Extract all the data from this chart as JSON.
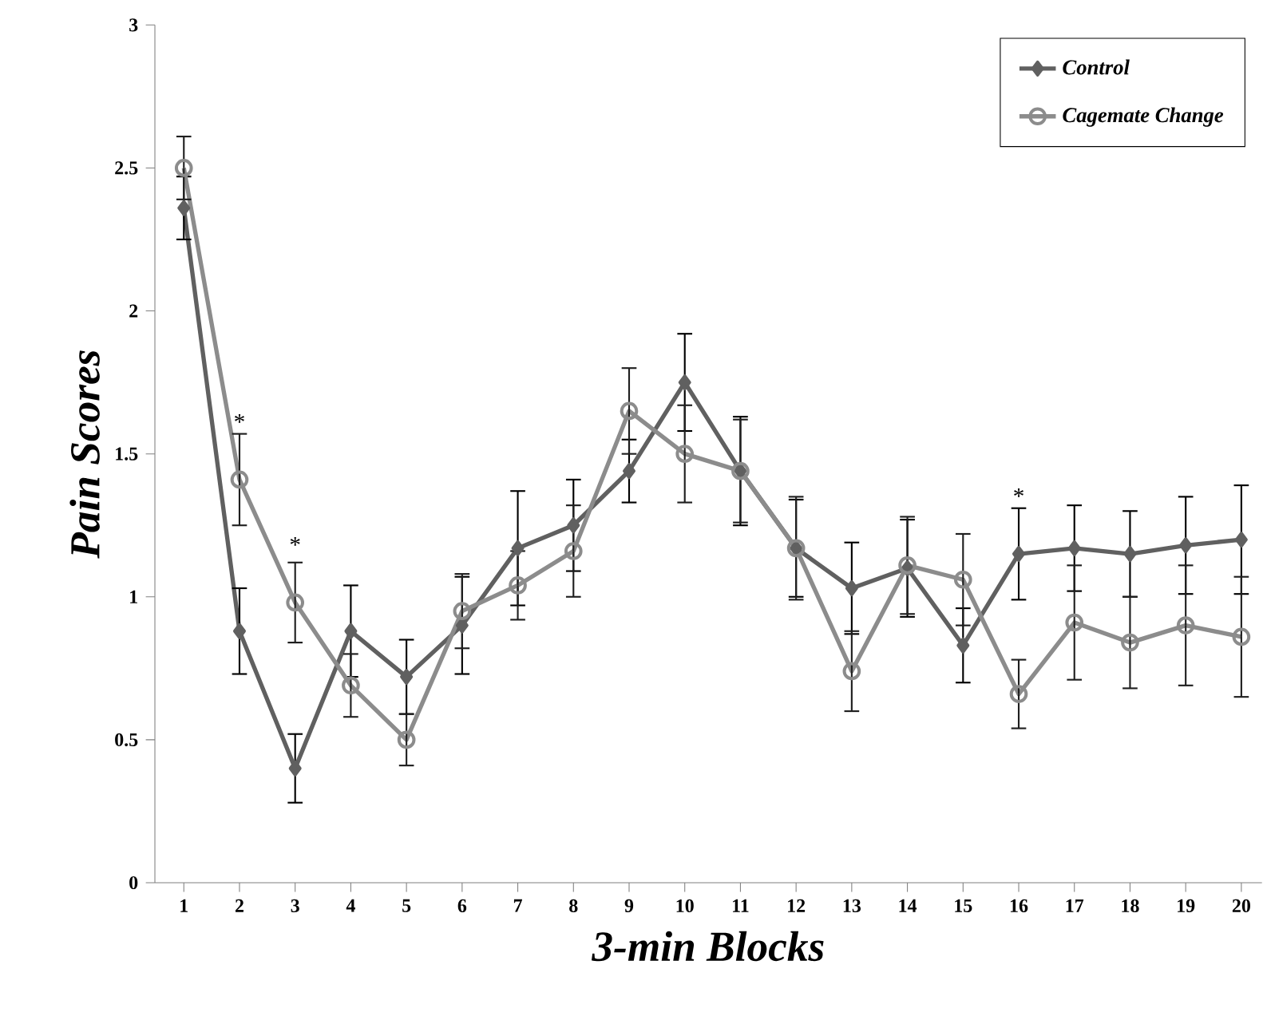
{
  "chart_data": {
    "type": "line",
    "xlabel": "3-min Blocks",
    "ylabel": "Pain Scores",
    "categories": [
      "1",
      "2",
      "3",
      "4",
      "5",
      "6",
      "7",
      "8",
      "9",
      "10",
      "11",
      "12",
      "13",
      "14",
      "15",
      "16",
      "17",
      "18",
      "19",
      "20"
    ],
    "series": [
      {
        "name": "Control",
        "color": "#606060",
        "marker": "diamond",
        "values": [
          2.36,
          0.88,
          0.4,
          0.88,
          0.72,
          0.9,
          1.17,
          1.25,
          1.44,
          1.75,
          1.44,
          1.17,
          1.03,
          1.1,
          0.83,
          1.15,
          1.17,
          1.15,
          1.18,
          1.2
        ],
        "errors": [
          0.11,
          0.15,
          0.12,
          0.16,
          0.13,
          0.17,
          0.2,
          0.16,
          0.11,
          0.17,
          0.19,
          0.17,
          0.16,
          0.17,
          0.13,
          0.16,
          0.15,
          0.15,
          0.17,
          0.19
        ]
      },
      {
        "name": "Cagemate Change",
        "color": "#8c8c8c",
        "marker": "circle",
        "values": [
          2.5,
          1.41,
          0.98,
          0.69,
          0.5,
          0.95,
          1.04,
          1.16,
          1.65,
          1.5,
          1.44,
          1.17,
          0.74,
          1.11,
          1.06,
          0.66,
          0.91,
          0.84,
          0.9,
          0.86
        ],
        "errors": [
          0.11,
          0.16,
          0.14,
          0.11,
          0.09,
          0.13,
          0.12,
          0.16,
          0.15,
          0.17,
          0.18,
          0.18,
          0.14,
          0.17,
          0.16,
          0.12,
          0.2,
          0.16,
          0.21,
          0.21
        ]
      }
    ],
    "ylim": [
      0,
      3
    ],
    "yticks": [
      0,
      0.5,
      1,
      1.5,
      2,
      2.5,
      3
    ],
    "legend": "top right",
    "grid": false,
    "line_style": "solid",
    "annotations": [
      {
        "text": "*",
        "x": "2",
        "y": 1.41
      },
      {
        "text": "*",
        "x": "3",
        "y": 0.98
      },
      {
        "text": "*",
        "x": "16",
        "y": 1.15
      }
    ]
  }
}
